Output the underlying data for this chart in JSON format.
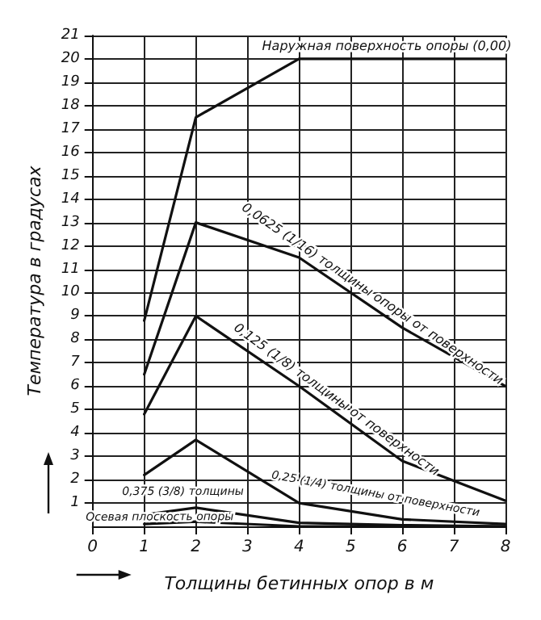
{
  "chart_data": {
    "type": "line",
    "xlabel": "Толщины бетинных опор в м",
    "ylabel": "Температура в градусах",
    "x": [
      1,
      2,
      4,
      6,
      8
    ],
    "series": [
      {
        "name": "Наружная поверхность опоры (0,00)",
        "color": "#111111",
        "values": [
          8.8,
          17.5,
          20,
          20,
          20
        ]
      },
      {
        "name": "0,0625 (1/16) толщины опоры от поверхности",
        "color": "#111111",
        "values": [
          6.5,
          13,
          11.5,
          8.5,
          6
        ]
      },
      {
        "name": "0,125 (1/8) толщины от поверхности",
        "color": "#111111",
        "values": [
          4.8,
          9,
          6,
          2.8,
          1.1
        ]
      },
      {
        "name": "0,25 (1/4) толщины от поверхности",
        "color": "#111111",
        "values": [
          2.2,
          3.7,
          1,
          0.3,
          0.1
        ]
      },
      {
        "name": "0,375 (3/8) толщины",
        "color": "#111111",
        "values": [
          0.5,
          0.8,
          0.15,
          0.05,
          0
        ]
      },
      {
        "name": "Осевая плоскость опоры",
        "color": "#111111",
        "values": [
          0.1,
          0.2,
          0,
          0,
          0
        ]
      }
    ],
    "xlim": [
      0,
      8
    ],
    "xticks": [
      0,
      1,
      2,
      3,
      4,
      5,
      6,
      7,
      8
    ],
    "ylim": [
      0,
      21
    ],
    "yticks": [
      1,
      2,
      3,
      4,
      5,
      6,
      7,
      8,
      9,
      10,
      11,
      12,
      13,
      14,
      15,
      16,
      17,
      18,
      19,
      20,
      21
    ],
    "grid": true,
    "marker": "none",
    "line_style": "solid"
  }
}
